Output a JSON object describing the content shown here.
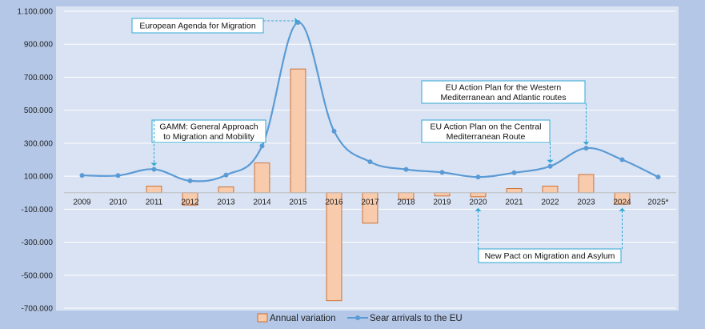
{
  "chart_data": {
    "type": "bar+line",
    "categories": [
      "2009",
      "2010",
      "2011",
      "2012",
      "2013",
      "2014",
      "2015",
      "2016",
      "2017",
      "2018",
      "2019",
      "2020",
      "2021",
      "2022",
      "2023",
      "2024",
      "2025*"
    ],
    "series": [
      {
        "name": "Annual variation",
        "type": "bar",
        "color": "#f8cbad",
        "stroke": "#c55a11",
        "values": [
          0,
          0,
          40000,
          -75000,
          35000,
          180000,
          750000,
          -655000,
          -185000,
          -40000,
          -20000,
          -25000,
          25000,
          40000,
          110000,
          -70000,
          0
        ]
      },
      {
        "name": "Sear arrivals to the EU",
        "type": "line",
        "color": "#5b9bd5",
        "values": [
          105000,
          104000,
          142000,
          72000,
          107000,
          283000,
          1032000,
          373000,
          187000,
          141000,
          123000,
          95000,
          121000,
          160000,
          270000,
          200000,
          95000
        ]
      }
    ],
    "y_ticks": [
      "1.100.000",
      "900.000",
      "700.000",
      "500.000",
      "300.000",
      "100.000",
      "-100.000",
      "-300.000",
      "-500.000",
      "-700.000"
    ],
    "ylim": [
      -700000,
      1100000
    ],
    "annotations": [
      {
        "text": [
          "European Agenda for Migration"
        ],
        "target_index": 6
      },
      {
        "text": [
          "GAMM: General Approach",
          "to Migration and Mobility"
        ],
        "target_index": 2
      },
      {
        "text": [
          "EU Action Plan for the Western",
          "Mediterranean and Atlantic routes"
        ],
        "target_index": 14
      },
      {
        "text": [
          "EU Action Plan on the Central",
          "Mediterranean Route"
        ],
        "target_index": 13
      },
      {
        "text": [
          "New Pact on Migration and Asylum"
        ],
        "target_index": 11,
        "target_index_2": 15
      }
    ],
    "legend": {
      "position": "bottom"
    },
    "grid": true
  }
}
